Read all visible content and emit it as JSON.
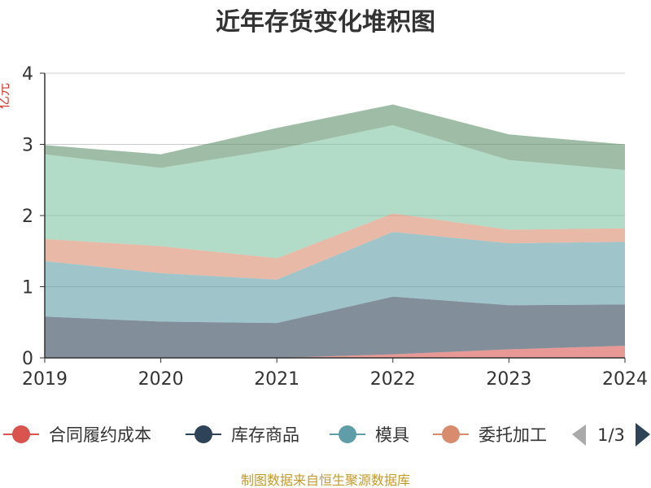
{
  "chart_data": {
    "type": "area",
    "stacked": true,
    "title": "近年存货变化堆积图",
    "ylabel": "亿元",
    "x": [
      "2019",
      "2020",
      "2021",
      "2022",
      "2023",
      "2024"
    ],
    "ylim": [
      0,
      4
    ],
    "yticks": [
      "0",
      "1",
      "2",
      "3",
      "4"
    ],
    "grid": true,
    "series": [
      {
        "name": "合同履约成本",
        "color": "#d9534f",
        "values": [
          0.0,
          0.0,
          0.0,
          0.05,
          0.12,
          0.17
        ]
      },
      {
        "name": "库存商品",
        "color": "#2e4357",
        "values": [
          0.58,
          0.51,
          0.49,
          0.81,
          0.62,
          0.58
        ]
      },
      {
        "name": "模具",
        "color": "#5f9ea8",
        "values": [
          0.78,
          0.68,
          0.61,
          0.91,
          0.87,
          0.88
        ]
      },
      {
        "name": "委托加工",
        "color": "#d98b6d",
        "values": [
          0.31,
          0.38,
          0.3,
          0.26,
          0.19,
          0.19
        ]
      },
      {
        "name": "",
        "color": "#7fc4a4",
        "values": [
          1.19,
          1.1,
          1.53,
          1.24,
          0.98,
          0.82
        ]
      },
      {
        "name": "",
        "color": "#5f8f6b",
        "values": [
          0.13,
          0.19,
          0.3,
          0.29,
          0.36,
          0.36
        ]
      }
    ],
    "legend": {
      "placement": "bottom",
      "page": "1/3"
    }
  },
  "source": "制图数据来自恒生聚源数据库"
}
